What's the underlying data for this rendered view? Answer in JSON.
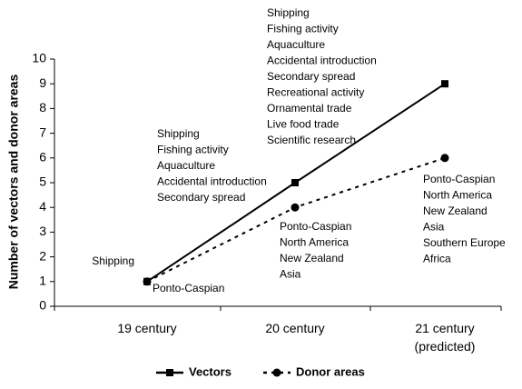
{
  "chart_data": {
    "type": "line",
    "y_label": "Number of vectors and donor areas",
    "categories": [
      "19 century",
      "20 century",
      "21 century\n(predicted)"
    ],
    "ylim": [
      0,
      10
    ],
    "yticks": [
      0,
      1,
      2,
      3,
      4,
      5,
      6,
      7,
      8,
      9,
      10
    ],
    "grid": false,
    "series": [
      {
        "name": "Vectors",
        "color": "#000000",
        "dash": "solid",
        "marker": "square",
        "values": [
          1,
          5,
          9
        ],
        "point_labels": [
          [
            "Shipping"
          ],
          [
            "Shipping",
            "Fishing activity",
            "Aquaculture",
            "Accidental introduction",
            "Secondary spread"
          ],
          [
            "Shipping",
            "Fishing activity",
            "Aquaculture",
            "Accidental introduction",
            "Secondary spread",
            "Recreational activity",
            "Ornamental trade",
            "Live food trade",
            "Scientific research"
          ]
        ]
      },
      {
        "name": "Donor areas",
        "color": "#000000",
        "dash": "dotted",
        "marker": "circle",
        "values": [
          1,
          4,
          6
        ],
        "point_labels": [
          [
            "Ponto-Caspian"
          ],
          [
            "Ponto-Caspian",
            "North America",
            "New Zealand",
            "Asia"
          ],
          [
            "Ponto-Caspian",
            "North America",
            "New Zealand",
            "Asia",
            "Southern Europe",
            "Africa"
          ]
        ]
      }
    ],
    "legend": "bottom"
  }
}
